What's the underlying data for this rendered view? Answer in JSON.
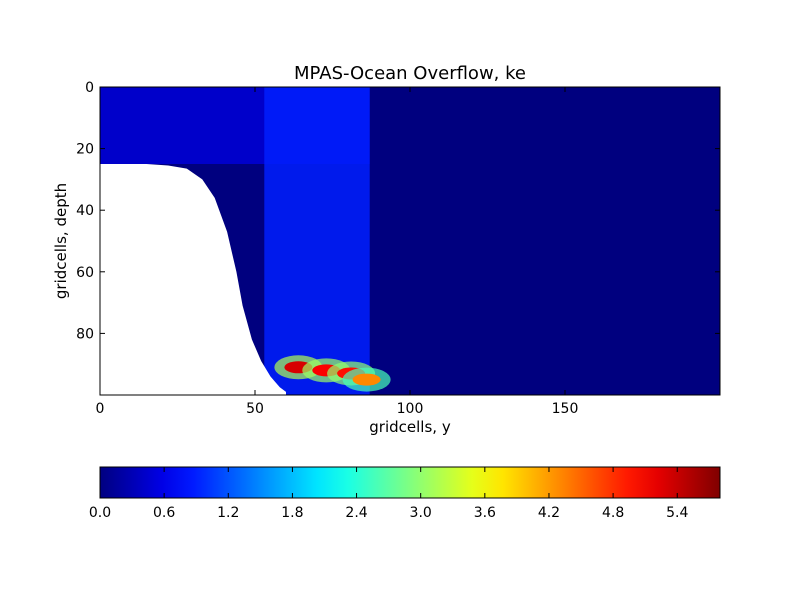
{
  "chart_data": [
    {
      "type": "heatmap",
      "title": "MPAS-Ocean Overflow, ke",
      "xlabel": "gridcells, y",
      "ylabel": "gridcells, depth",
      "xlim": [
        0,
        200
      ],
      "ylim": [
        100,
        0
      ],
      "xticks": [
        0,
        50,
        100,
        150
      ],
      "xtick_labels": [
        "0",
        "50",
        "100",
        "150"
      ],
      "yticks": [
        0,
        20,
        40,
        60,
        80
      ],
      "ytick_labels": [
        "0",
        "20",
        "40",
        "60",
        "80"
      ],
      "grid": false,
      "colormap": "jet",
      "value_range": [
        0.0,
        5.8
      ],
      "nan_region": {
        "description": "bathymetry (no data)",
        "top_boundary": [
          {
            "y": 0,
            "depth": 25
          },
          {
            "y": 15,
            "depth": 25
          },
          {
            "y": 22,
            "depth": 25.5
          },
          {
            "y": 28,
            "depth": 26.5
          },
          {
            "y": 33,
            "depth": 30
          },
          {
            "y": 37,
            "depth": 36
          },
          {
            "y": 41,
            "depth": 47
          },
          {
            "y": 44,
            "depth": 60
          },
          {
            "y": 46,
            "depth": 71
          },
          {
            "y": 49,
            "depth": 82
          },
          {
            "y": 52,
            "depth": 89
          },
          {
            "y": 55,
            "depth": 94
          },
          {
            "y": 58,
            "depth": 97.5
          },
          {
            "y": 60,
            "depth": 99
          },
          {
            "y": 60,
            "depth": 100
          }
        ]
      },
      "features": [
        {
          "name": "surface layer",
          "y_range": [
            0,
            87
          ],
          "depth_range": [
            0,
            25
          ],
          "level": 0.5
        },
        {
          "name": "overflow column",
          "y_range": [
            53,
            87
          ],
          "depth_range": [
            0,
            100
          ],
          "level": 0.9
        },
        {
          "name": "plume core",
          "y": 64,
          "depth": 91,
          "level": 5.3
        },
        {
          "name": "plume core",
          "y": 73,
          "depth": 92,
          "level": 5.1
        },
        {
          "name": "plume core",
          "y": 81,
          "depth": 93,
          "level": 5.0
        },
        {
          "name": "plume edge",
          "y": 86,
          "depth": 95,
          "level": 4.3
        }
      ]
    },
    {
      "type": "colorbar",
      "orientation": "horizontal",
      "colormap": "jet",
      "range": [
        0.0,
        5.8
      ],
      "ticks": [
        0.0,
        0.6,
        1.2,
        1.8,
        2.4,
        3.0,
        3.6,
        4.2,
        4.8,
        5.4
      ],
      "tick_labels": [
        "0.0",
        "0.6",
        "1.2",
        "1.8",
        "2.4",
        "3.0",
        "3.6",
        "4.2",
        "4.8",
        "5.4"
      ]
    }
  ]
}
